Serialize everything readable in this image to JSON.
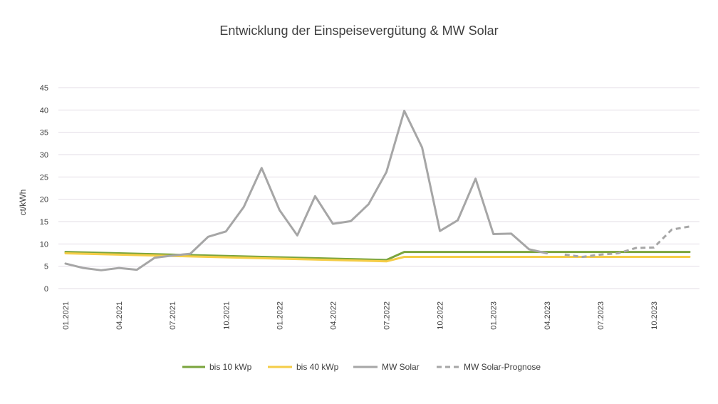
{
  "chart_data": {
    "type": "line",
    "title": "Entwicklung der Einspeisevergütung & MW Solar",
    "xlabel": "",
    "ylabel": "ct/kWh",
    "ylim": [
      0,
      45
    ],
    "yticks": [
      0,
      5,
      10,
      15,
      20,
      25,
      30,
      35,
      40,
      45
    ],
    "grid": true,
    "legend_position": "bottom",
    "x": [
      "01.2021",
      "02.2021",
      "03.2021",
      "04.2021",
      "05.2021",
      "06.2021",
      "07.2021",
      "08.2021",
      "09.2021",
      "10.2021",
      "11.2021",
      "12.2021",
      "01.2022",
      "02.2022",
      "03.2022",
      "04.2022",
      "05.2022",
      "06.2022",
      "07.2022",
      "08.2022",
      "09.2022",
      "10.2022",
      "11.2022",
      "12.2022",
      "01.2023",
      "02.2023",
      "03.2023",
      "04.2023",
      "05.2023",
      "06.2023",
      "07.2023",
      "08.2023",
      "09.2023",
      "10.2023",
      "11.2023",
      "12.2023"
    ],
    "xtick_labels": [
      "01.2021",
      "04.2021",
      "07.2021",
      "10.2021",
      "01.2022",
      "04.2022",
      "07.2022",
      "10.2022",
      "01.2023",
      "04.2023",
      "07.2023",
      "10.2023"
    ],
    "series": [
      {
        "name": "bis 10 kWp",
        "color": "#7aa43c",
        "style": "solid",
        "values": [
          8.2,
          8.1,
          8.0,
          7.9,
          7.8,
          7.7,
          7.6,
          7.5,
          7.4,
          7.3,
          7.2,
          7.1,
          7.0,
          6.9,
          6.8,
          6.7,
          6.6,
          6.5,
          6.4,
          8.2,
          8.2,
          8.2,
          8.2,
          8.2,
          8.2,
          8.2,
          8.2,
          8.2,
          8.2,
          8.2,
          8.2,
          8.2,
          8.2,
          8.2,
          8.2,
          8.2
        ]
      },
      {
        "name": "bis 40 kWp",
        "color": "#f5cd47",
        "style": "solid",
        "values": [
          7.9,
          7.8,
          7.7,
          7.6,
          7.5,
          7.4,
          7.3,
          7.2,
          7.1,
          7.0,
          6.9,
          6.8,
          6.7,
          6.6,
          6.5,
          6.4,
          6.3,
          6.2,
          6.1,
          7.1,
          7.1,
          7.1,
          7.1,
          7.1,
          7.1,
          7.1,
          7.1,
          7.1,
          7.1,
          7.1,
          7.1,
          7.1,
          7.1,
          7.1,
          7.1,
          7.1
        ]
      },
      {
        "name": "MW Solar",
        "color": "#a6a6a6",
        "style": "solid",
        "values": [
          5.6,
          4.6,
          4.1,
          4.6,
          4.2,
          6.9,
          7.4,
          7.8,
          11.6,
          12.8,
          18.3,
          27.0,
          17.6,
          11.9,
          20.7,
          14.5,
          15.1,
          18.9,
          26.1,
          39.8,
          31.6,
          12.9,
          15.3,
          24.6,
          12.2,
          12.3,
          8.8,
          7.9,
          null,
          null,
          null,
          null,
          null,
          null,
          null,
          null
        ]
      },
      {
        "name": "MW Solar-Prognose",
        "color": "#a6a6a6",
        "style": "dashed",
        "values": [
          null,
          null,
          null,
          null,
          null,
          null,
          null,
          null,
          null,
          null,
          null,
          null,
          null,
          null,
          null,
          null,
          null,
          null,
          null,
          null,
          null,
          null,
          null,
          null,
          null,
          null,
          null,
          null,
          7.6,
          7.1,
          7.6,
          7.9,
          9.1,
          9.2,
          13.2,
          13.9
        ]
      }
    ]
  }
}
